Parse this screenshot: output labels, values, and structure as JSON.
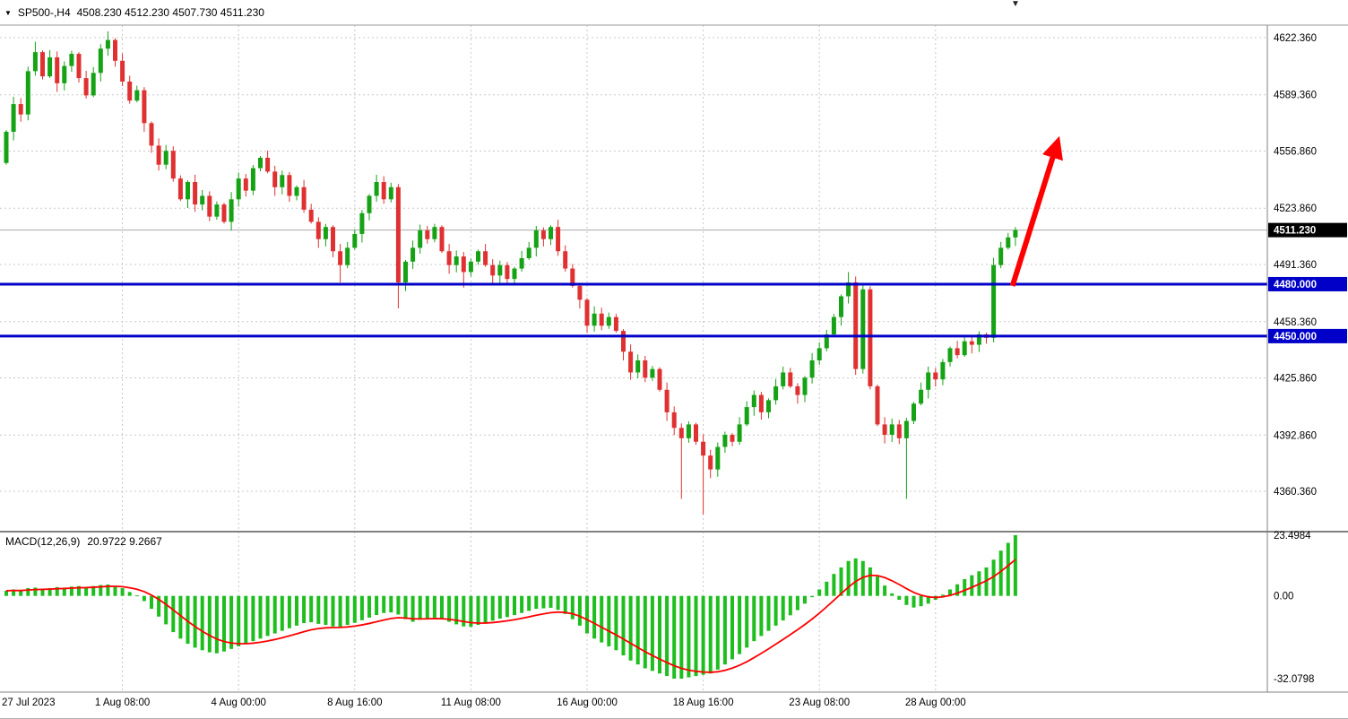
{
  "info_bar": {
    "symbol_period": "SP500-,H4",
    "ohlc_text": "4508.230 4512.230 4507.730 4511.230",
    "dropdown_icon": "▼",
    "shift_marker_icon": "▼"
  },
  "price_axis": {
    "ylim": [
      4337.6,
      4629.6
    ],
    "ticks": [
      {
        "v": 4622.36,
        "label": "4622.360"
      },
      {
        "v": 4589.36,
        "label": "4589.360"
      },
      {
        "v": 4556.86,
        "label": "4556.860"
      },
      {
        "v": 4523.86,
        "label": "4523.860"
      },
      {
        "v": 4491.36,
        "label": "4491.360"
      },
      {
        "v": 4458.36,
        "label": "4458.360"
      },
      {
        "v": 4425.86,
        "label": "4425.860"
      },
      {
        "v": 4392.86,
        "label": "4392.860"
      },
      {
        "v": 4360.36,
        "label": "4360.360"
      }
    ],
    "current": {
      "v": 4511.23,
      "label": "4511.230"
    }
  },
  "time_axis": {
    "ticks": [
      {
        "bar": 0,
        "label": "27 Jul 2023"
      },
      {
        "bar": 16,
        "label": "1 Aug 08:00"
      },
      {
        "bar": 32,
        "label": "4 Aug 00:00"
      },
      {
        "bar": 48,
        "label": "8 Aug 16:00"
      },
      {
        "bar": 64,
        "label": "11 Aug 08:00"
      },
      {
        "bar": 80,
        "label": "16 Aug 00:00"
      },
      {
        "bar": 96,
        "label": "18 Aug 16:00"
      },
      {
        "bar": 112,
        "label": "23 Aug 08:00"
      },
      {
        "bar": 128,
        "label": "28 Aug 00:00"
      }
    ]
  },
  "levels": [
    {
      "v": 4480,
      "label": "4480.000"
    },
    {
      "v": 4450,
      "label": "4450.000"
    }
  ],
  "arrow": {
    "from": {
      "bar": 138.6,
      "price": 4479
    },
    "to": {
      "bar": 144.8,
      "price": 4562
    }
  },
  "macd_panel": {
    "label": "MACD(12,26,9)",
    "values_text": "20.9722 9.2667",
    "ylim": [
      -36.5,
      24.5
    ],
    "ticks": [
      {
        "v": 23.4984,
        "label": "23.4984"
      },
      {
        "v": 0,
        "label": "0.00"
      },
      {
        "v": -32.0798,
        "label": "-32.0798"
      }
    ]
  },
  "colors": {
    "up": "#15A215",
    "down": "#DF3131",
    "macd_hist": "#1DBE1D",
    "signal": "#FF0000",
    "level": "#0000C8",
    "grid": "#C8C8C8",
    "current_price_line": "#A8A8A8",
    "badge_current_bg": "#000000",
    "badge_level_bg": "#0000C8",
    "arrow": "#FF0000",
    "separator": "#808080"
  },
  "chart_data": {
    "type": "candlestick",
    "title": "SP500- H4 with MACD(12,26,9)",
    "symbol": "SP500-",
    "timeframe": "H4",
    "ylim": [
      4337.6,
      4629.6
    ],
    "first_open": 4550,
    "closes": [
      4568,
      4584,
      4578,
      4603,
      4614,
      4600,
      4611,
      4596,
      4606,
      4613,
      4599,
      4589,
      4602,
      4616,
      4621,
      4609,
      4597,
      4586,
      4592,
      4573,
      4560,
      4549,
      4557,
      4541,
      4529,
      4539,
      4526,
      4531,
      4519,
      4526,
      4516,
      4529,
      4541,
      4534,
      4547,
      4553,
      4545,
      4536,
      4543,
      4531,
      4536,
      4523,
      4516,
      4506,
      4513,
      4499,
      4491,
      4501,
      4509,
      4521,
      4531,
      4539,
      4529,
      4536,
      4481,
      4493,
      4501,
      4511,
      4506,
      4513,
      4499,
      4491,
      4496,
      4487,
      4493,
      4499,
      4491,
      4485,
      4491,
      4483,
      4489,
      4495,
      4501,
      4511,
      4506,
      4513,
      4499,
      4489,
      4479,
      4471,
      4456,
      4463,
      4456,
      4461,
      4453,
      4441,
      4429,
      4436,
      4426,
      4431,
      4419,
      4406,
      4397,
      4391,
      4399,
      4389,
      4381,
      4373,
      4386,
      4393,
      4389,
      4399,
      4409,
      4416,
      4406,
      4413,
      4421,
      4429,
      4421,
      4416,
      4426,
      4436,
      4443,
      4451,
      4461,
      4473,
      4481,
      4431,
      4477,
      4421,
      4399,
      4393,
      4399,
      4391,
      4401,
      4411,
      4419,
      4429,
      4425,
      4435,
      4443,
      4439,
      4447,
      4445,
      4451,
      4449,
      4491,
      4501,
      4507,
      4511.23
    ],
    "wick_overrides": {
      "4": {
        "high": 4620
      },
      "14": {
        "high": 4626
      },
      "46": {
        "low": 4481
      },
      "54": {
        "low": 4466
      },
      "63": {
        "low": 4478
      },
      "93": {
        "low": 4356
      },
      "96": {
        "low": 4347
      },
      "116": {
        "high": 4487
      },
      "124": {
        "low": 4356
      }
    },
    "macd": [
      2,
      2.5,
      2,
      3,
      3.2,
      2.8,
      3,
      3.4,
      3.2,
      3.6,
      3.8,
      3.4,
      3.8,
      4.2,
      4.4,
      3.8,
      3,
      1.5,
      0.2,
      -2,
      -5,
      -8,
      -11,
      -14,
      -16.5,
      -18.5,
      -20,
      -21,
      -21.8,
      -22.2,
      -21.5,
      -20.5,
      -19.5,
      -18.5,
      -17.5,
      -16.5,
      -15.5,
      -14.5,
      -13.5,
      -12.5,
      -11.5,
      -10.5,
      -10.2,
      -10.8,
      -11.2,
      -11.8,
      -12,
      -11.2,
      -10.4,
      -9.4,
      -8.4,
      -7.4,
      -6.6,
      -6.4,
      -7.2,
      -9,
      -10,
      -9.2,
      -8.6,
      -8.4,
      -9,
      -10,
      -11,
      -11.8,
      -12,
      -11.2,
      -10.4,
      -9.6,
      -8.8,
      -8.2,
      -7.4,
      -6.6,
      -5.8,
      -5,
      -4.8,
      -4.6,
      -5.4,
      -7,
      -9,
      -11.5,
      -14.5,
      -16.5,
      -18,
      -19.5,
      -21,
      -23,
      -25,
      -26.5,
      -28,
      -29,
      -30,
      -31,
      -32,
      -32,
      -31.5,
      -31,
      -30.5,
      -30,
      -28.5,
      -26.5,
      -24.5,
      -22.5,
      -20,
      -17.5,
      -15.5,
      -13.5,
      -11.5,
      -9.5,
      -7.5,
      -5.5,
      -3,
      -0.5,
      2.5,
      5.5,
      8.5,
      11,
      13.5,
      14.5,
      13.5,
      11,
      7.5,
      4,
      1,
      -1.5,
      -3.5,
      -4.5,
      -4,
      -3,
      -1.5,
      0.5,
      2.5,
      4.5,
      6.5,
      8,
      9.5,
      11,
      14,
      17.5,
      20.5,
      23.5
    ],
    "macd_ylim": [
      -36.5,
      24.5
    ],
    "signal_period": 9
  }
}
